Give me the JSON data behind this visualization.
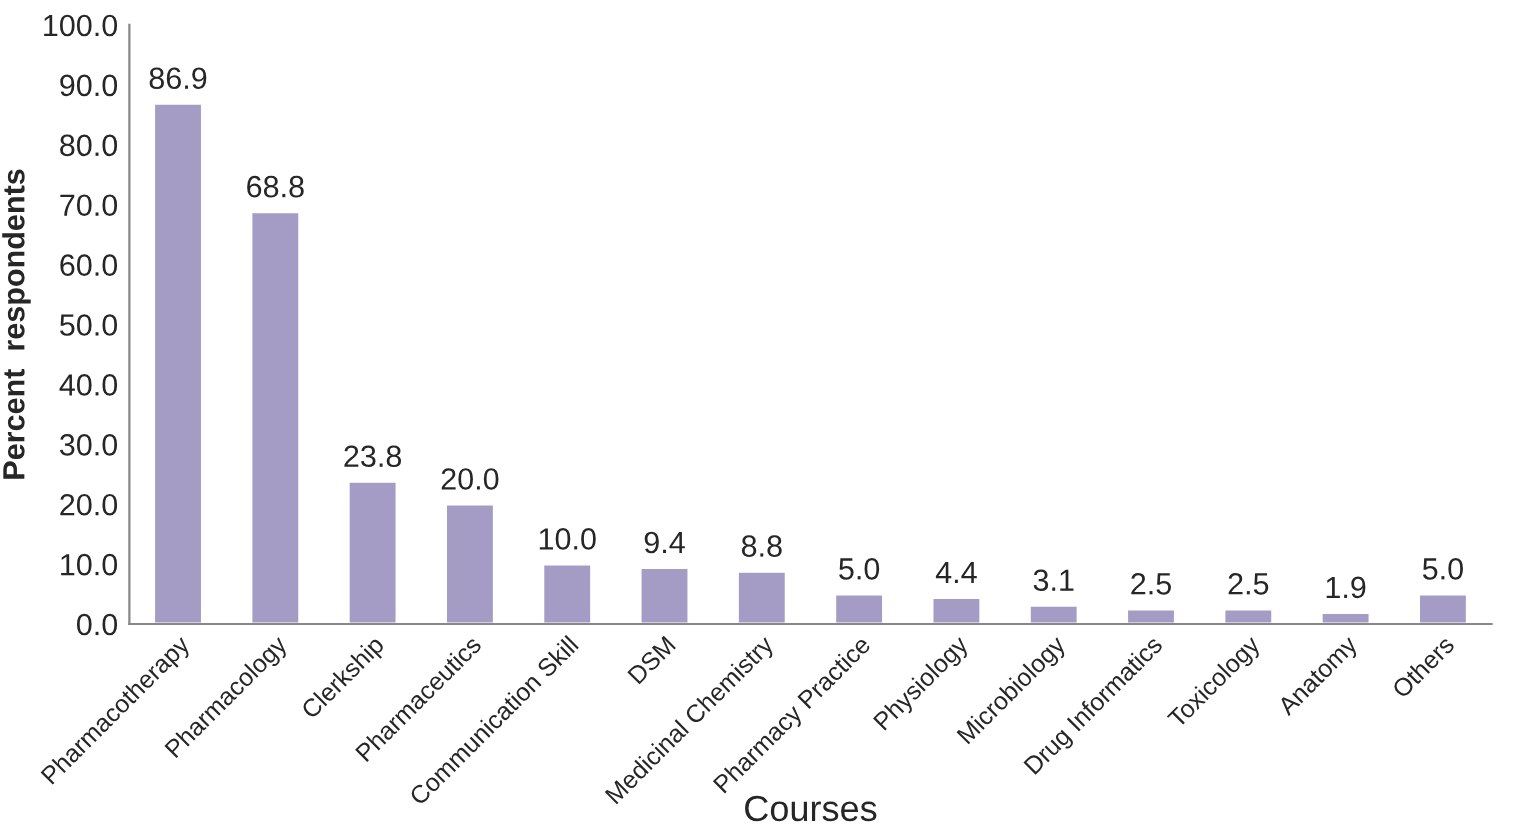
{
  "chart_data": {
    "type": "bar",
    "xlabel": "Courses",
    "ylabel": "Percent  respondents",
    "categories": [
      "Pharmacotherapy",
      "Pharmacology",
      "Clerkship",
      "Pharmaceutics",
      "Communication Skill",
      "DSM",
      "Medicinal Chemistry",
      "Pharmacy Practice",
      "Physiology",
      "Microbiology",
      "Drug Informatics",
      "Toxicology",
      "Anatomy",
      "Others"
    ],
    "values": [
      86.9,
      68.8,
      23.8,
      20.0,
      10.0,
      9.4,
      8.8,
      5.0,
      4.4,
      3.1,
      2.5,
      2.5,
      1.9,
      5.0
    ],
    "value_labels": [
      "86.9",
      "68.8",
      "23.8",
      "20.0",
      "10.0",
      "9.4",
      "8.8",
      "5.0",
      "4.4",
      "3.1",
      "2.5",
      "2.5",
      "1.9",
      "5.0"
    ],
    "color": "#a59cc6",
    "ylim": [
      0,
      100
    ],
    "yticks": [
      {
        "value": 0,
        "label": "0.0"
      },
      {
        "value": 10,
        "label": "10.0"
      },
      {
        "value": 20,
        "label": "20.0"
      },
      {
        "value": 30,
        "label": "30.0"
      },
      {
        "value": 40,
        "label": "40.0"
      },
      {
        "value": 50,
        "label": "50.0"
      },
      {
        "value": 60,
        "label": "60.0"
      },
      {
        "value": 70,
        "label": "70.0"
      },
      {
        "value": 80,
        "label": "80.0"
      },
      {
        "value": 90,
        "label": "90.0"
      },
      {
        "value": 100,
        "label": "100.0"
      }
    ],
    "grid": false,
    "legend": false
  }
}
